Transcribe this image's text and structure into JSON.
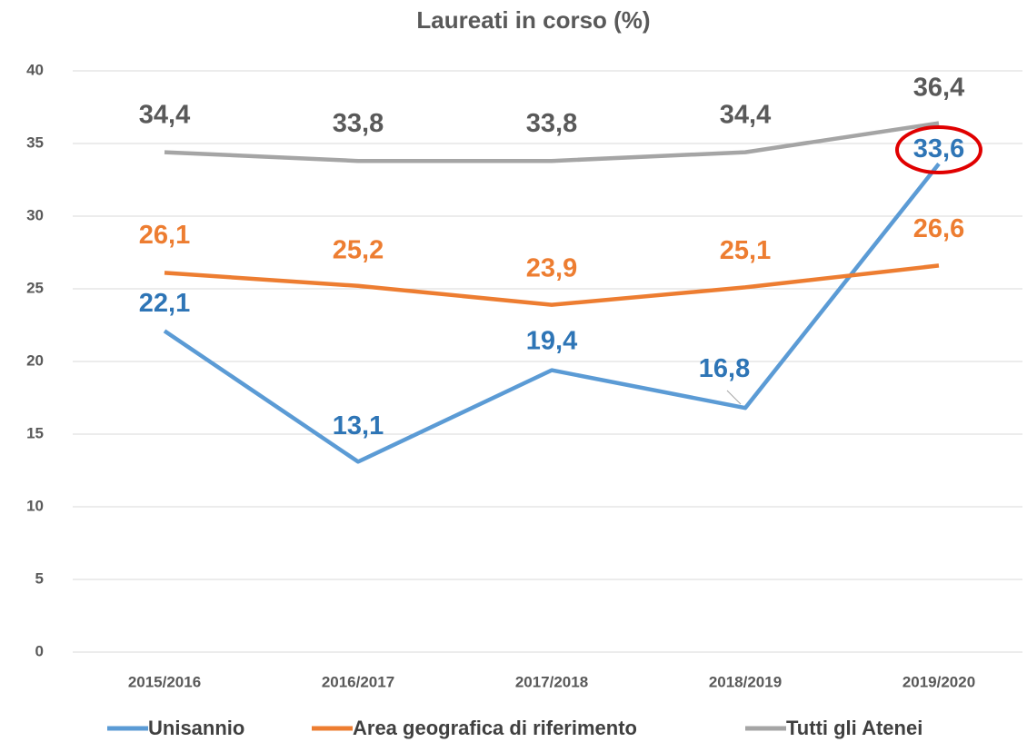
{
  "chart_data": {
    "type": "line",
    "title": "Laureati in corso (%)",
    "categories": [
      "2015/2016",
      "2016/2017",
      "2017/2018",
      "2018/2019",
      "2019/2020"
    ],
    "series": [
      {
        "name": "Unisannio",
        "color": "#5b9bd5",
        "label_color": "#2e75b6",
        "values": [
          22.1,
          13.1,
          19.4,
          16.8,
          33.6
        ],
        "value_labels": [
          "22,1",
          "13,1",
          "19,4",
          "16,8",
          "33,6"
        ]
      },
      {
        "name": "Area geografica di riferimento",
        "color": "#ed7d31",
        "label_color": "#ed7d31",
        "values": [
          26.1,
          25.2,
          23.9,
          25.1,
          26.6
        ],
        "value_labels": [
          "26,1",
          "25,2",
          "23,9",
          "25,1",
          "26,6"
        ]
      },
      {
        "name": "Tutti gli Atenei",
        "color": "#a5a5a5",
        "label_color": "#595959",
        "values": [
          34.4,
          33.8,
          33.8,
          34.4,
          36.4
        ],
        "value_labels": [
          "34,4",
          "33,8",
          "33,8",
          "34,4",
          "36,4"
        ]
      }
    ],
    "ylim": [
      0,
      40
    ],
    "yticks": [
      0,
      5,
      10,
      15,
      20,
      25,
      30,
      35,
      40
    ],
    "grid": true,
    "legend": "bottom"
  }
}
